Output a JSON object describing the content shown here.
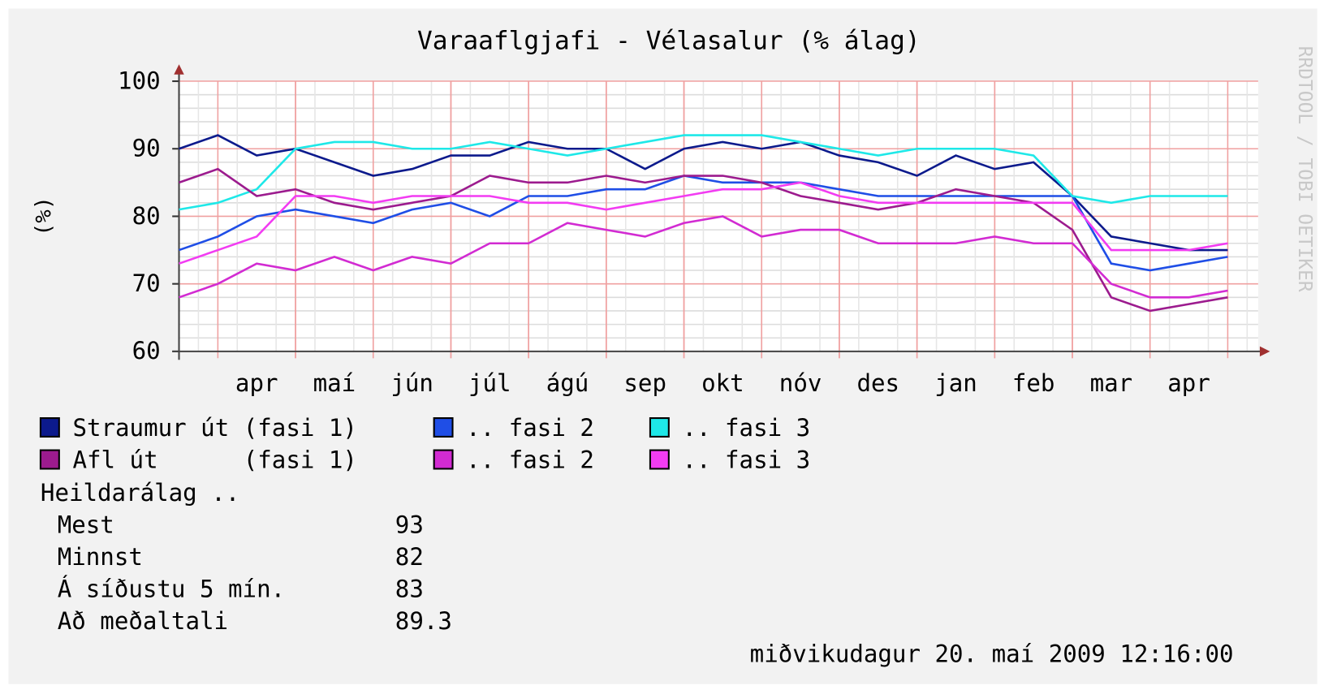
{
  "chart_data": {
    "type": "line",
    "title": "Varaaflgjafi - Vélasalur (% álag)",
    "y_label": "(%)",
    "watermark": "RRDTOOL / TOBI OETIKER",
    "categories": [
      null,
      null,
      "apr",
      null,
      "maí",
      null,
      "jún",
      null,
      "júl",
      null,
      "ágú",
      null,
      "sep",
      null,
      "okt",
      null,
      "nóv",
      null,
      "des",
      null,
      "jan",
      null,
      "feb",
      null,
      "mar",
      null,
      "apr",
      null
    ],
    "ylim": [
      60,
      100
    ],
    "yticks": [
      60,
      70,
      80,
      90,
      100
    ],
    "grid": true,
    "series": [
      {
        "name": "Straumur út (fasi 1)",
        "color": "#0c1a8c",
        "values": [
          90,
          92,
          89,
          90,
          88,
          86,
          87,
          89,
          89,
          91,
          90,
          90,
          87,
          90,
          91,
          90,
          91,
          89,
          88,
          86,
          89,
          87,
          88,
          83,
          77,
          76,
          75,
          75
        ]
      },
      {
        "name": ".. fasi 2",
        "color": "#1f4ee6",
        "values": [
          75,
          77,
          80,
          81,
          80,
          79,
          81,
          82,
          80,
          83,
          83,
          84,
          84,
          86,
          85,
          85,
          85,
          84,
          83,
          83,
          83,
          83,
          83,
          83,
          73,
          72,
          73,
          74
        ]
      },
      {
        "name": ".. fasi 3",
        "color": "#1ee8e8",
        "values": [
          81,
          82,
          84,
          90,
          91,
          91,
          90,
          90,
          91,
          90,
          89,
          90,
          91,
          92,
          92,
          92,
          91,
          90,
          89,
          90,
          90,
          90,
          89,
          83,
          82,
          83,
          83,
          83
        ]
      },
      {
        "name": "Afl út      (fasi 1)",
        "color": "#9c1b8e",
        "values": [
          85,
          87,
          83,
          84,
          82,
          81,
          82,
          83,
          86,
          85,
          85,
          86,
          85,
          86,
          86,
          85,
          83,
          82,
          81,
          82,
          84,
          83,
          82,
          78,
          68,
          66,
          67,
          68
        ]
      },
      {
        "name": ".. fasi 2",
        "color": "#d22bd2",
        "values": [
          68,
          70,
          73,
          72,
          74,
          72,
          74,
          73,
          76,
          76,
          79,
          78,
          77,
          79,
          80,
          77,
          78,
          78,
          76,
          76,
          76,
          77,
          76,
          76,
          70,
          68,
          68,
          69
        ]
      },
      {
        "name": ".. fasi 3",
        "color": "#f23cf2",
        "values": [
          73,
          75,
          77,
          83,
          83,
          82,
          83,
          83,
          83,
          82,
          82,
          81,
          82,
          83,
          84,
          84,
          85,
          83,
          82,
          82,
          82,
          82,
          82,
          82,
          75,
          75,
          75,
          76
        ]
      }
    ],
    "stats": {
      "heading": "Heildarálag ..",
      "rows": [
        {
          "label": "Mest",
          "value": 93
        },
        {
          "label": "Minnst",
          "value": 82
        },
        {
          "label": "Á síðustu 5 mín.",
          "value": 83
        },
        {
          "label": "Að meðaltali",
          "value": 89.3
        }
      ]
    },
    "timestamp": "miðvikudagur 20. maí 2009 12:16:00"
  }
}
